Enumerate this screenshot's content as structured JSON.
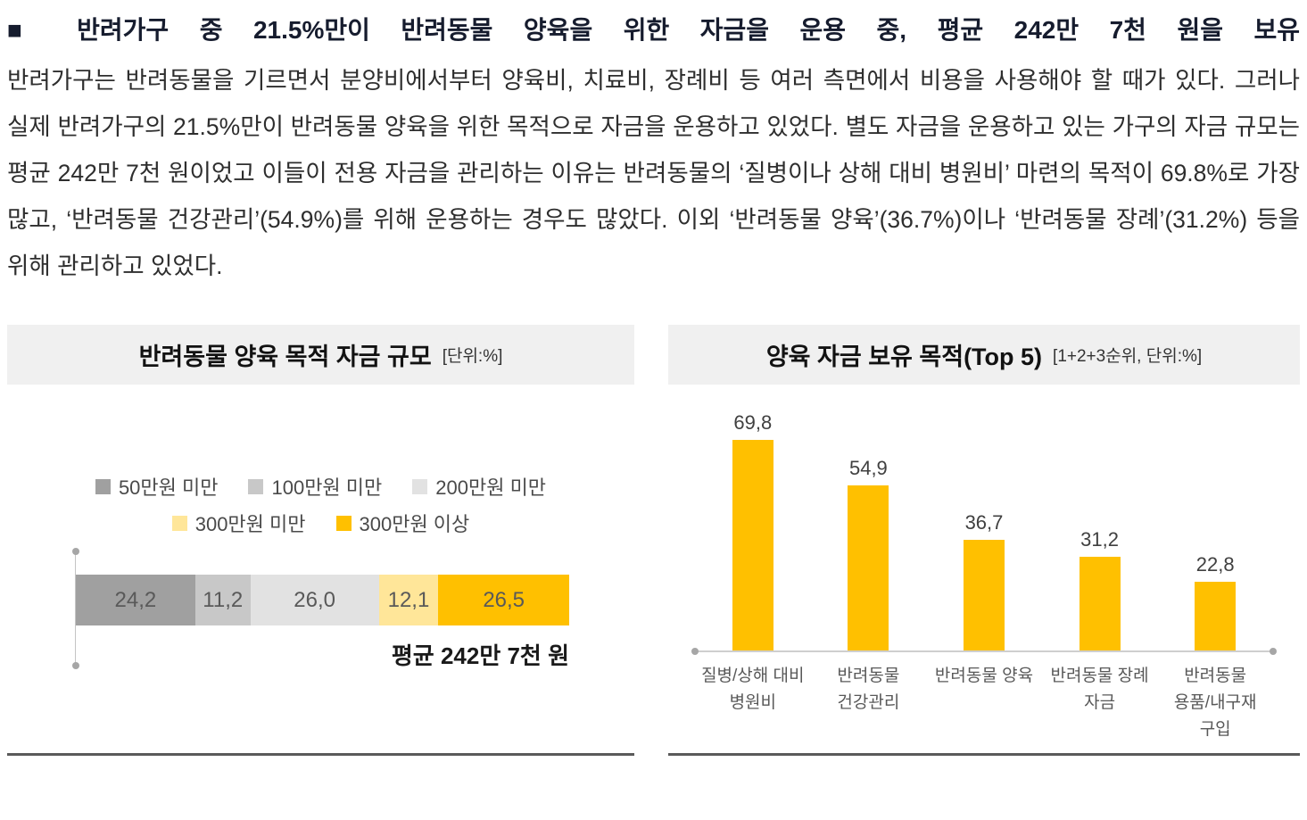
{
  "page": {
    "heading": "■ 반려가구 중 21.5%만이 반려동물 양육을 위한 자금을 운용 중, 평균 242만 7천 원을 보유",
    "body": "반려가구는 반려동물을 기르면서 분양비에서부터 양육비, 치료비, 장례비 등 여러 측면에서 비용을 사용해야 할 때가 있다. 그러나 실제 반려가구의 21.5%만이 반려동물 양육을 위한 목적으로 자금을 운용하고 있었다. 별도 자금을 운용하고 있는 가구의 자금 규모는 평균 242만 7천 원이었고 이들이 전용 자금을 관리하는 이유는 반려동물의 ‘질병이나 상해 대비 병원비’ 마련의 목적이 69.8%로 가장 많고, ‘반려동물 건강관리’(54.9%)를 위해 운용하는 경우도 많았다. 이외 ‘반려동물 양육’(36.7%)이나 ‘반려동물 장례’(31.2%) 등을 위해 관리하고 있었다."
  },
  "colors": {
    "accent_yellow": "#ffc000",
    "light_yellow": "#ffe699",
    "gray_dark": "#a0a0a0",
    "gray_mid": "#c8c8c8",
    "gray_light": "#e2e2e2",
    "header_band": "#f0f0f0"
  },
  "chart_data": [
    {
      "type": "bar",
      "orientation": "horizontal-stacked",
      "title": "반려동물 양육 목적 자금 규모",
      "unit_label": "[단위:%]",
      "categories": [
        "50만원 미만",
        "100만원 미만",
        "200만원 미만",
        "300만원 미만",
        "300만원 이상"
      ],
      "values": [
        24.2,
        11.2,
        26.0,
        12.1,
        26.5
      ],
      "value_labels": [
        "24,2",
        "11,2",
        "26,0",
        "12,1",
        "26,5"
      ],
      "colors": [
        "#a0a0a0",
        "#c8c8c8",
        "#e2e2e2",
        "#ffe699",
        "#ffc000"
      ],
      "annotation": "평균 242만 7천 원",
      "legend_position": "top",
      "legend_rows": [
        [
          0,
          1,
          2
        ],
        [
          3,
          4
        ]
      ],
      "xlim": [
        0,
        100
      ]
    },
    {
      "type": "bar",
      "orientation": "vertical",
      "title": "양육 자금 보유 목적(Top 5)",
      "unit_label": "[1+2+3순위, 단위:%]",
      "categories": [
        "질병/상해 대비 병원비",
        "반려동물 건강관리",
        "반려동물 양육",
        "반려동물 장례 자금",
        "반려동물 용품/내구재 구입"
      ],
      "category_lines": [
        [
          "질병/상해 대비",
          "병원비"
        ],
        [
          "반려동물",
          "건강관리"
        ],
        [
          "반려동물 양육"
        ],
        [
          "반려동물 장례",
          "자금"
        ],
        [
          "반려동물",
          "용품/내구재",
          "구입"
        ]
      ],
      "values": [
        69.8,
        54.9,
        36.7,
        31.2,
        22.8
      ],
      "value_labels": [
        "69,8",
        "54,9",
        "36,7",
        "31,2",
        "22,8"
      ],
      "bar_color": "#ffc000",
      "ylim": [
        0,
        80
      ],
      "grid": false,
      "legend_position": "none"
    }
  ]
}
